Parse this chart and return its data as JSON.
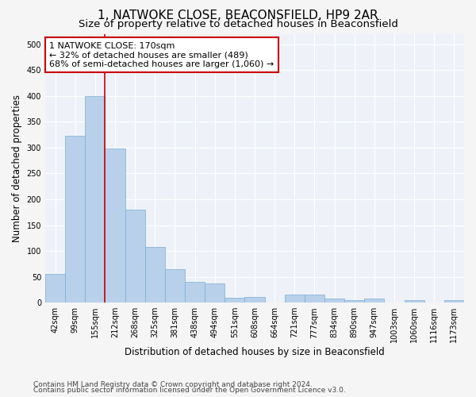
{
  "title": "1, NATWOKE CLOSE, BEACONSFIELD, HP9 2AR",
  "subtitle": "Size of property relative to detached houses in Beaconsfield",
  "xlabel": "Distribution of detached houses by size in Beaconsfield",
  "ylabel": "Number of detached properties",
  "categories": [
    "42sqm",
    "99sqm",
    "155sqm",
    "212sqm",
    "268sqm",
    "325sqm",
    "381sqm",
    "438sqm",
    "494sqm",
    "551sqm",
    "608sqm",
    "664sqm",
    "721sqm",
    "777sqm",
    "834sqm",
    "890sqm",
    "947sqm",
    "1003sqm",
    "1060sqm",
    "1116sqm",
    "1173sqm"
  ],
  "values": [
    55,
    322,
    400,
    298,
    180,
    108,
    65,
    40,
    37,
    10,
    11,
    0,
    15,
    15,
    8,
    5,
    8,
    0,
    5,
    0,
    5
  ],
  "bar_color": "#b8d0ea",
  "bar_edge_color": "#7aafd4",
  "annotation_line0": "1 NATWOKE CLOSE: 170sqm",
  "annotation_line1": "← 32% of detached houses are smaller (489)",
  "annotation_line2": "68% of semi-detached houses are larger (1,060) →",
  "annotation_box_color": "#ffffff",
  "annotation_box_edge_color": "#cc0000",
  "vline_color": "#cc0000",
  "ylim": [
    0,
    520
  ],
  "yticks": [
    0,
    50,
    100,
    150,
    200,
    250,
    300,
    350,
    400,
    450,
    500
  ],
  "footer1": "Contains HM Land Registry data © Crown copyright and database right 2024.",
  "footer2": "Contains public sector information licensed under the Open Government Licence v3.0.",
  "background_color": "#eef2f8",
  "grid_color": "#ffffff",
  "title_fontsize": 11,
  "subtitle_fontsize": 9.5,
  "axis_label_fontsize": 8.5,
  "tick_fontsize": 7,
  "annotation_fontsize": 8,
  "footer_fontsize": 6.5
}
